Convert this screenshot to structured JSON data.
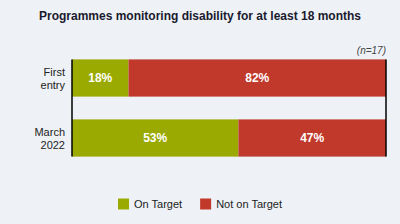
{
  "chart_data": {
    "type": "bar",
    "title": "Programmes monitoring disability for at least 18 months",
    "annotations": [
      "(n=17)"
    ],
    "orientation": "horizontal",
    "stacked": true,
    "categories": [
      "First\nentry",
      "March\n2022"
    ],
    "series": [
      {
        "name": "On Target",
        "color": "#9aaa00",
        "values": [
          18,
          53
        ],
        "value_labels": [
          "18%",
          "53%"
        ]
      },
      {
        "name": "Not on Target",
        "color": "#c0392b",
        "values": [
          82,
          47
        ],
        "value_labels": [
          "82%",
          "47%"
        ]
      }
    ],
    "xlim": [
      0,
      100
    ],
    "tick_labels": false,
    "data_labels": true,
    "legend": "bottom"
  }
}
